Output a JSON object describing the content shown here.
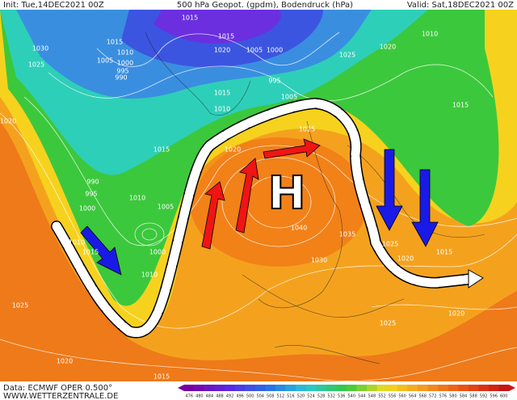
{
  "header": {
    "init": "Init: Tue,14DEC2021 00Z",
    "title": "500 hPa Geopot. (gpdm), Bodendruck (hPa)",
    "valid": "Valid: Sat,18DEC2021 00Z"
  },
  "footer": {
    "source": "Data: ECMWF OPER 0.500°",
    "site": "WWW.WETTERZENTRALE.DE"
  },
  "high_label": "H",
  "isobar_labels": [
    "1030",
    "1025",
    "1015",
    "1010",
    "1005",
    "1000",
    "995",
    "990",
    "1015",
    "1015",
    "1020",
    "1005",
    "1000",
    "995",
    "1015",
    "1010",
    "1005",
    "1010",
    "1025",
    "1015",
    "1010",
    "1005",
    "1000",
    "1010",
    "990",
    "995",
    "1000",
    "1015",
    "1010",
    "1025",
    "1020",
    "1015",
    "1025",
    "1030",
    "1035",
    "1040",
    "1020",
    "1025",
    "1020",
    "1015",
    "1020",
    "1015",
    "1010",
    "1025",
    "1020",
    "1020"
  ],
  "colorbar_labels": [
    "476",
    "480",
    "484",
    "488",
    "492",
    "496",
    "500",
    "504",
    "508",
    "512",
    "516",
    "520",
    "524",
    "528",
    "532",
    "536",
    "540",
    "544",
    "548",
    "552",
    "556",
    "560",
    "564",
    "568",
    "572",
    "576",
    "580",
    "584",
    "588",
    "592",
    "596",
    "600"
  ]
}
